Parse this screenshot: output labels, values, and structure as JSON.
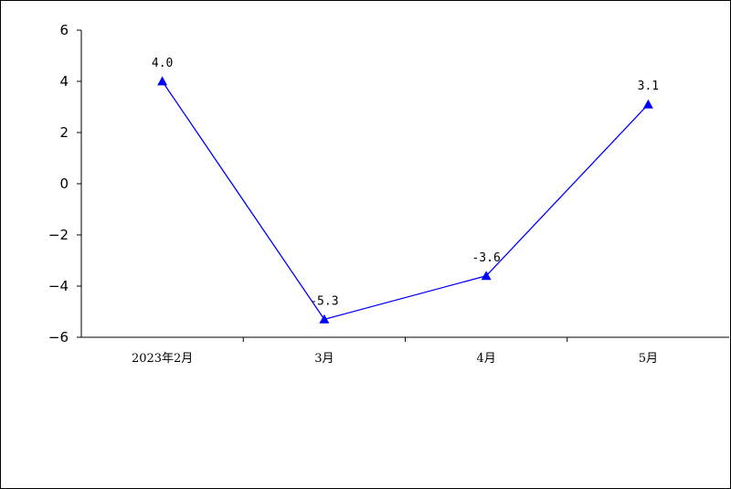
{
  "chart_data": {
    "type": "line",
    "title": "",
    "xlabel": "",
    "ylabel": "",
    "categories": [
      "2023年2月",
      "3月",
      "4月",
      "5月"
    ],
    "series": [
      {
        "values": [
          4.0,
          -5.3,
          -3.6,
          3.1
        ]
      }
    ],
    "data_labels": [
      "4.0",
      "-5.3",
      "-3.6",
      "3.1"
    ],
    "ylim": [
      -6,
      6
    ],
    "yticks": [
      6,
      4,
      2,
      0,
      -2,
      -4,
      -6
    ],
    "ytick_labels": [
      "6",
      "4",
      "2",
      "0",
      "−2",
      "−4",
      "−6"
    ],
    "marker": "triangle",
    "line_color": "#0000ff",
    "grid": false,
    "legend": "none"
  }
}
